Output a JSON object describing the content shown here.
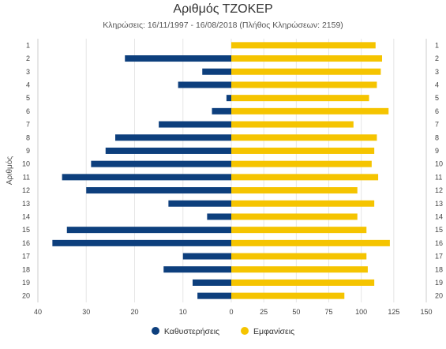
{
  "chart_data": {
    "type": "bar",
    "orientation": "horizontal-diverging",
    "title": "Αριθμός ΤΖΟΚΕΡ",
    "subtitle": "Κληρώσεις: 16/11/1997 - 16/08/2018 (Πλήθος Κληρώσεων: 2159)",
    "ylabel": "Αριθμός",
    "categories": [
      "1",
      "2",
      "3",
      "4",
      "5",
      "6",
      "7",
      "8",
      "9",
      "10",
      "11",
      "12",
      "13",
      "14",
      "15",
      "16",
      "17",
      "18",
      "19",
      "20"
    ],
    "series": [
      {
        "name": "Καθυστερήσεις",
        "color": "#0d3f7d",
        "axis": "left",
        "values": [
          0,
          22,
          6,
          11,
          1,
          4,
          15,
          24,
          26,
          29,
          35,
          30,
          13,
          5,
          34,
          37,
          10,
          14,
          8,
          7
        ]
      },
      {
        "name": "Εμφανίσεις",
        "color": "#f5c400",
        "axis": "right",
        "values": [
          111,
          116,
          115,
          112,
          106,
          121,
          94,
          112,
          110,
          108,
          113,
          97,
          110,
          97,
          104,
          122,
          104,
          105,
          110,
          87
        ]
      }
    ],
    "left_axis": {
      "ticks": [
        40,
        30,
        20,
        10,
        0
      ],
      "range": [
        40,
        0
      ]
    },
    "right_axis": {
      "ticks": [
        0,
        25,
        50,
        75,
        100,
        125,
        150
      ],
      "range": [
        0,
        150
      ]
    },
    "grid": true,
    "legend_position": "bottom"
  }
}
